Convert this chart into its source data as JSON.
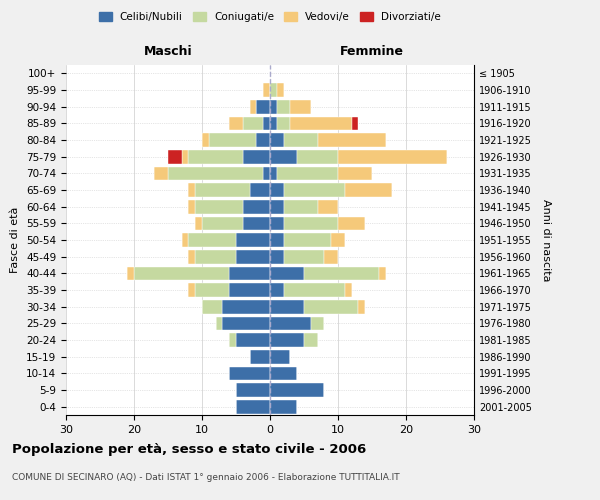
{
  "age_groups": [
    "0-4",
    "5-9",
    "10-14",
    "15-19",
    "20-24",
    "25-29",
    "30-34",
    "35-39",
    "40-44",
    "45-49",
    "50-54",
    "55-59",
    "60-64",
    "65-69",
    "70-74",
    "75-79",
    "80-84",
    "85-89",
    "90-94",
    "95-99",
    "100+"
  ],
  "birth_years": [
    "2001-2005",
    "1996-2000",
    "1991-1995",
    "1986-1990",
    "1981-1985",
    "1976-1980",
    "1971-1975",
    "1966-1970",
    "1961-1965",
    "1956-1960",
    "1951-1955",
    "1946-1950",
    "1941-1945",
    "1936-1940",
    "1931-1935",
    "1926-1930",
    "1921-1925",
    "1916-1920",
    "1911-1915",
    "1906-1910",
    "≤ 1905"
  ],
  "colors": {
    "celibi": "#3d6fa8",
    "coniugati": "#c5d9a0",
    "vedovi": "#f5c97a",
    "divorziati": "#cc2222"
  },
  "males": {
    "celibi": [
      5,
      5,
      6,
      3,
      5,
      7,
      7,
      6,
      6,
      5,
      5,
      4,
      4,
      3,
      1,
      4,
      2,
      1,
      2,
      0,
      0
    ],
    "coniugati": [
      0,
      0,
      0,
      0,
      1,
      1,
      3,
      5,
      14,
      6,
      7,
      6,
      7,
      8,
      14,
      8,
      7,
      3,
      0,
      0,
      0
    ],
    "vedovi": [
      0,
      0,
      0,
      0,
      0,
      0,
      0,
      1,
      1,
      1,
      1,
      1,
      1,
      1,
      2,
      1,
      1,
      2,
      1,
      1,
      0
    ],
    "divorziati": [
      0,
      0,
      0,
      0,
      0,
      0,
      0,
      0,
      0,
      0,
      0,
      0,
      0,
      0,
      0,
      2,
      0,
      0,
      0,
      0,
      0
    ]
  },
  "females": {
    "nubili": [
      4,
      8,
      4,
      3,
      5,
      6,
      5,
      2,
      5,
      2,
      2,
      2,
      2,
      2,
      1,
      4,
      2,
      1,
      1,
      0,
      0
    ],
    "coniugate": [
      0,
      0,
      0,
      0,
      2,
      2,
      8,
      9,
      11,
      6,
      7,
      8,
      5,
      9,
      9,
      6,
      5,
      2,
      2,
      1,
      0
    ],
    "vedove": [
      0,
      0,
      0,
      0,
      0,
      0,
      1,
      1,
      1,
      2,
      2,
      4,
      3,
      7,
      5,
      16,
      10,
      9,
      3,
      1,
      0
    ],
    "divorziate": [
      0,
      0,
      0,
      0,
      0,
      0,
      0,
      0,
      0,
      0,
      0,
      0,
      0,
      0,
      0,
      0,
      0,
      1,
      0,
      0,
      0
    ]
  },
  "xlim": [
    -30,
    30
  ],
  "xticks": [
    -30,
    -20,
    -10,
    0,
    10,
    20,
    30
  ],
  "xticklabels": [
    "30",
    "20",
    "10",
    "0",
    "10",
    "20",
    "30"
  ],
  "title": "Popolazione per età, sesso e stato civile - 2006",
  "subtitle": "COMUNE DI SECINARO (AQ) - Dati ISTAT 1° gennaio 2006 - Elaborazione TUTTITALIA.IT",
  "ylabel_left": "Fasce di età",
  "ylabel_right": "Anni di nascita",
  "label_maschi": "Maschi",
  "label_femmine": "Femmine",
  "legend_labels": [
    "Celibi/Nubili",
    "Coniugati/e",
    "Vedovi/e",
    "Divorziati/e"
  ],
  "bg_color": "#f0f0f0",
  "plot_bg_color": "#ffffff"
}
